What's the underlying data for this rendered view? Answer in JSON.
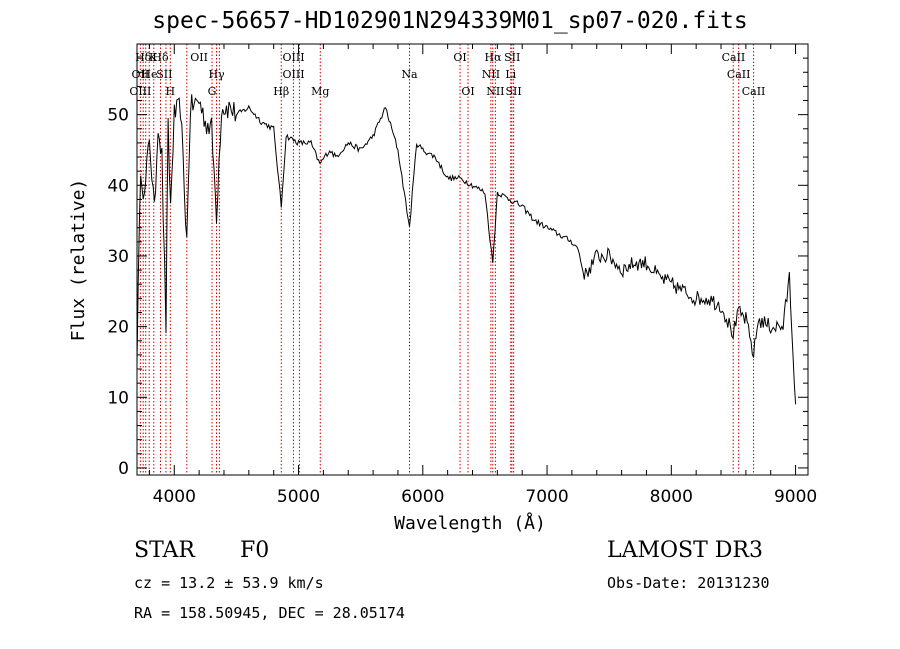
{
  "chart_data": {
    "type": "line",
    "title": "spec-56657-HD102901N294339M01_sp07-020.fits",
    "xlabel": "Wavelength (Å)",
    "ylabel": "Flux (relative)",
    "xlim": [
      3700,
      9100
    ],
    "ylim": [
      -1,
      60
    ],
    "x_ticks": [
      4000,
      5000,
      6000,
      7000,
      8000,
      9000
    ],
    "y_ticks": [
      0,
      10,
      20,
      30,
      40,
      50
    ],
    "grid": false,
    "series": [
      {
        "color": "#000000",
        "x": [
          3700,
          3730,
          3760,
          3800,
          3840,
          3870,
          3900,
          3933,
          3950,
          3970,
          4000,
          4050,
          4101,
          4130,
          4200,
          4250,
          4300,
          4340,
          4380,
          4450,
          4500,
          4600,
          4700,
          4800,
          4861,
          4900,
          5000,
          5100,
          5170,
          5250,
          5300,
          5400,
          5500,
          5600,
          5700,
          5800,
          5893,
          5950,
          6000,
          6100,
          6200,
          6300,
          6400,
          6500,
          6563,
          6600,
          6700,
          6800,
          6900,
          7000,
          7100,
          7200,
          7250,
          7300,
          7400,
          7500,
          7600,
          7700,
          7800,
          7900,
          8000,
          8100,
          8200,
          8300,
          8400,
          8498,
          8542,
          8600,
          8662,
          8700,
          8800,
          8900,
          8950,
          9000
        ],
        "y": [
          16,
          43,
          38,
          47,
          36,
          49,
          44,
          20,
          48,
          37,
          50,
          51,
          32,
          51,
          52,
          49,
          48,
          36,
          51,
          51,
          50,
          51,
          49,
          48,
          37,
          47,
          46,
          46,
          43,
          45,
          44,
          46,
          45,
          47,
          51,
          45,
          34,
          46,
          45,
          44,
          41,
          41,
          40,
          39,
          29,
          39,
          38,
          37,
          35,
          34,
          33,
          32,
          31,
          27,
          30,
          30,
          28,
          29,
          29,
          27,
          26,
          25,
          24,
          24,
          23,
          19,
          22,
          21,
          16,
          21,
          20,
          20,
          27,
          9
        ]
      }
    ],
    "line_ids": [
      {
        "name": "Hδ",
        "wavelength": 3750,
        "row": 0
      },
      {
        "name": "K",
        "wavelength": 3830,
        "row": 0
      },
      {
        "name": "Hδ",
        "wavelength": 3889,
        "row": 0
      },
      {
        "name": "OII",
        "wavelength": 4200,
        "row": 0
      },
      {
        "name": "OIII",
        "wavelength": 4960,
        "row": 0
      },
      {
        "name": "OI",
        "wavelength": 6300,
        "row": 0
      },
      {
        "name": "Hα",
        "wavelength": 6565,
        "row": 0
      },
      {
        "name": "SII",
        "wavelength": 6720,
        "row": 0
      },
      {
        "name": "CaII",
        "wavelength": 8500,
        "row": 0
      },
      {
        "name": "OII",
        "wavelength": 3727,
        "row": 1
      },
      {
        "name": "He",
        "wavelength": 3800,
        "row": 1
      },
      {
        "name": "SII",
        "wavelength": 3920,
        "row": 1
      },
      {
        "name": "Hγ",
        "wavelength": 4340,
        "row": 1
      },
      {
        "name": "OIII",
        "wavelength": 4960,
        "row": 1
      },
      {
        "name": "Na",
        "wavelength": 5893,
        "row": 1
      },
      {
        "name": "NII",
        "wavelength": 6548,
        "row": 1
      },
      {
        "name": "Li",
        "wavelength": 6708,
        "row": 1
      },
      {
        "name": "CaII",
        "wavelength": 8542,
        "row": 1
      },
      {
        "name": "OIII",
        "wavelength": 3727,
        "row": 2
      },
      {
        "name": "H",
        "wavelength": 3968,
        "row": 2
      },
      {
        "name": "G",
        "wavelength": 4304,
        "row": 2
      },
      {
        "name": "Hβ",
        "wavelength": 4861,
        "row": 2
      },
      {
        "name": "Mg",
        "wavelength": 5175,
        "row": 2
      },
      {
        "name": "OI",
        "wavelength": 6364,
        "row": 2
      },
      {
        "name": "NII",
        "wavelength": 6584,
        "row": 2
      },
      {
        "name": "SII",
        "wavelength": 6731,
        "row": 2
      },
      {
        "name": "CaII",
        "wavelength": 8662,
        "row": 2
      }
    ],
    "marker_lines": [
      3727,
      3750,
      3770,
      3798,
      3835,
      3889,
      3933,
      3968,
      4101,
      4304,
      4340,
      4363,
      4861,
      4959,
      5007,
      5175,
      5893,
      6300,
      6364,
      6548,
      6563,
      6584,
      6708,
      6717,
      6731,
      8498,
      8542,
      8662
    ],
    "marker_color": "#cc0000"
  },
  "info": {
    "object_type": "STAR",
    "subclass": "F0",
    "survey": "LAMOST DR3",
    "cz": "cz = 13.2 ± 53.9 km/s",
    "obs_date": "Obs-Date: 20131230",
    "coords": "RA = 158.50945, DEC =  28.05174"
  }
}
